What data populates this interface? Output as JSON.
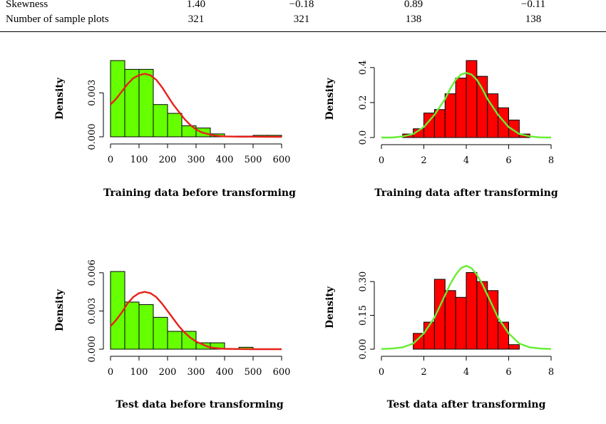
{
  "table": {
    "rows": [
      {
        "label": "Skewness",
        "values": [
          "1.40",
          "−0.18",
          "0.89",
          "−0.11"
        ]
      },
      {
        "label": "Number of sample plots",
        "values": [
          "321",
          "321",
          "138",
          "138"
        ]
      }
    ]
  },
  "chart_data": [
    {
      "type": "bar",
      "subtype": "histogram-with-density",
      "xlabel": "Training data before transforming",
      "ylabel": "Density",
      "xlim": [
        0,
        600
      ],
      "ylim": [
        0,
        0.0052
      ],
      "xticks": [
        0,
        100,
        200,
        300,
        400,
        500,
        600
      ],
      "yticks": [
        0.0,
        0.003
      ],
      "ytick_labels": [
        "0.000",
        "0.003"
      ],
      "bar_color": "#66ff00",
      "curve_color": "#e8201a",
      "bins": [
        [
          0,
          50
        ],
        [
          50,
          100
        ],
        [
          100,
          150
        ],
        [
          150,
          200
        ],
        [
          200,
          250
        ],
        [
          250,
          300
        ],
        [
          300,
          350
        ],
        [
          350,
          400
        ],
        [
          400,
          450
        ],
        [
          450,
          500
        ],
        [
          500,
          550
        ],
        [
          550,
          600
        ]
      ],
      "values": [
        0.0052,
        0.0046,
        0.0046,
        0.0022,
        0.0016,
        0.00075,
        0.0006,
        0.0002,
        5e-05,
        5e-05,
        0.0001,
        0.0001
      ],
      "curve": {
        "x": [
          0,
          20,
          40,
          60,
          80,
          100,
          120,
          140,
          160,
          180,
          200,
          220,
          240,
          260,
          280,
          300,
          320,
          340,
          360,
          380,
          400,
          450,
          500,
          550,
          600
        ],
        "y": [
          0.0022,
          0.0026,
          0.0031,
          0.0036,
          0.004,
          0.0042,
          0.0043,
          0.0042,
          0.0039,
          0.0034,
          0.0028,
          0.0022,
          0.0017,
          0.0012,
          0.0008,
          0.0005,
          0.0003,
          0.0002,
          0.0001,
          6e-05,
          3e-05,
          1e-05,
          1e-05,
          0.0,
          0.0
        ]
      }
    },
    {
      "type": "bar",
      "subtype": "histogram-with-density",
      "xlabel": "Training data after transforming",
      "ylabel": "Density",
      "xlim": [
        0,
        8
      ],
      "ylim": [
        0,
        0.44
      ],
      "xticks": [
        0,
        2,
        4,
        6,
        8
      ],
      "yticks": [
        0.0,
        0.2,
        0.4
      ],
      "ytick_labels": [
        "0.0",
        "0.2",
        "0.4"
      ],
      "bar_color": "#ff0000",
      "curve_color": "#66ee33",
      "bins": [
        [
          1,
          1.5
        ],
        [
          1.5,
          2
        ],
        [
          2,
          2.5
        ],
        [
          2.5,
          3
        ],
        [
          3,
          3.5
        ],
        [
          3.5,
          4
        ],
        [
          4,
          4.5
        ],
        [
          4.5,
          5
        ],
        [
          5,
          5.5
        ],
        [
          5.5,
          6
        ],
        [
          6,
          6.5
        ],
        [
          6.5,
          7
        ]
      ],
      "values": [
        0.02,
        0.05,
        0.14,
        0.16,
        0.25,
        0.34,
        0.44,
        0.35,
        0.25,
        0.17,
        0.1,
        0.02
      ],
      "curve": {
        "x": [
          0,
          0.5,
          1,
          1.5,
          2,
          2.5,
          3,
          3.25,
          3.5,
          3.75,
          4,
          4.25,
          4.5,
          4.75,
          5,
          5.5,
          6,
          6.5,
          7,
          7.5,
          8
        ],
        "y": [
          0.0,
          0.0,
          0.006,
          0.02,
          0.06,
          0.13,
          0.22,
          0.28,
          0.33,
          0.36,
          0.37,
          0.36,
          0.33,
          0.28,
          0.22,
          0.13,
          0.06,
          0.02,
          0.006,
          0.001,
          0.0
        ]
      }
    },
    {
      "type": "bar",
      "subtype": "histogram-with-density",
      "xlabel": "Test data before transforming",
      "ylabel": "Density",
      "xlim": [
        0,
        600
      ],
      "ylim": [
        0,
        0.0061
      ],
      "xticks": [
        0,
        100,
        200,
        300,
        400,
        500,
        600
      ],
      "yticks": [
        0.0,
        0.003,
        0.006
      ],
      "ytick_labels": [
        "0.000",
        "0.003",
        "0.006"
      ],
      "bar_color": "#66ff00",
      "curve_color": "#e8201a",
      "bins": [
        [
          0,
          50
        ],
        [
          50,
          100
        ],
        [
          100,
          150
        ],
        [
          150,
          200
        ],
        [
          200,
          250
        ],
        [
          250,
          300
        ],
        [
          300,
          350
        ],
        [
          350,
          400
        ],
        [
          400,
          450
        ],
        [
          450,
          500
        ],
        [
          500,
          550
        ],
        [
          550,
          600
        ]
      ],
      "values": [
        0.0061,
        0.0037,
        0.0035,
        0.0025,
        0.0014,
        0.0014,
        0.0005,
        0.0005,
        0.0,
        0.00015,
        0.0,
        0.0
      ],
      "curve": {
        "x": [
          0,
          20,
          40,
          60,
          80,
          100,
          120,
          140,
          160,
          180,
          200,
          220,
          240,
          260,
          280,
          300,
          320,
          340,
          360,
          380,
          400,
          450,
          500,
          550,
          600
        ],
        "y": [
          0.0018,
          0.0023,
          0.0029,
          0.0036,
          0.0041,
          0.0044,
          0.0045,
          0.0044,
          0.0041,
          0.0036,
          0.003,
          0.0024,
          0.0018,
          0.0013,
          0.0009,
          0.0006,
          0.0004,
          0.0002,
          0.0001,
          6e-05,
          3e-05,
          1e-05,
          0.0,
          0.0,
          0.0
        ]
      }
    },
    {
      "type": "bar",
      "subtype": "histogram-with-density",
      "xlabel": "Test data after transforming",
      "ylabel": "Density",
      "xlim": [
        0,
        8
      ],
      "ylim": [
        0,
        0.37
      ],
      "xticks": [
        0,
        2,
        4,
        6,
        8
      ],
      "yticks": [
        0.0,
        0.15,
        0.3
      ],
      "ytick_labels": [
        "0.00",
        "0.15",
        "0.30"
      ],
      "bar_color": "#ff0000",
      "curve_color": "#66ee33",
      "bins": [
        [
          1.5,
          2
        ],
        [
          2,
          2.5
        ],
        [
          2.5,
          3
        ],
        [
          3,
          3.5
        ],
        [
          3.5,
          4
        ],
        [
          4,
          4.5
        ],
        [
          4.5,
          5
        ],
        [
          5,
          5.5
        ],
        [
          5.5,
          6
        ],
        [
          6,
          6.5
        ]
      ],
      "values": [
        0.07,
        0.12,
        0.31,
        0.26,
        0.23,
        0.34,
        0.3,
        0.26,
        0.12,
        0.02
      ],
      "curve": {
        "x": [
          0,
          0.5,
          1,
          1.5,
          2,
          2.5,
          3,
          3.25,
          3.5,
          3.75,
          4,
          4.25,
          4.5,
          4.75,
          5,
          5.5,
          6,
          6.5,
          7,
          7.5,
          8
        ],
        "y": [
          0.001,
          0.003,
          0.008,
          0.025,
          0.07,
          0.14,
          0.24,
          0.29,
          0.33,
          0.36,
          0.37,
          0.36,
          0.33,
          0.29,
          0.24,
          0.14,
          0.07,
          0.025,
          0.008,
          0.003,
          0.001
        ]
      }
    }
  ]
}
